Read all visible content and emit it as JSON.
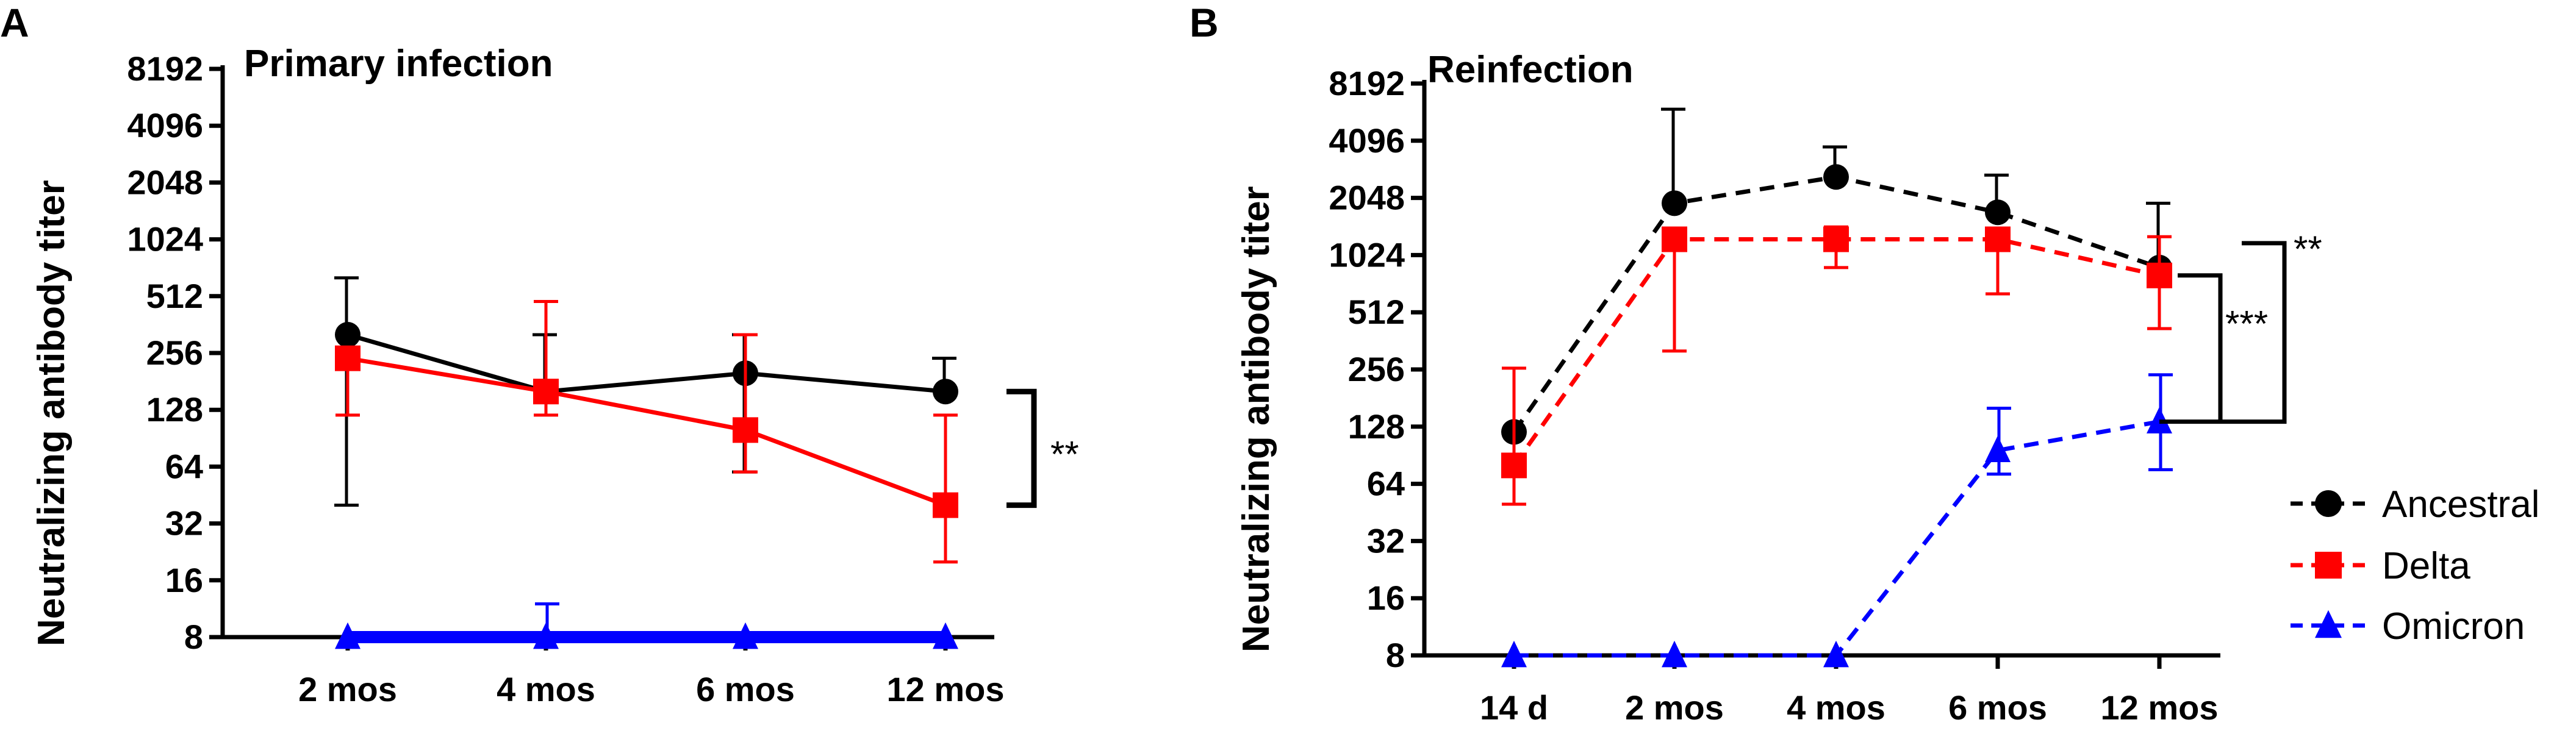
{
  "chart_data": [
    {
      "panel": "A",
      "type": "line",
      "title": "Primary infection",
      "ylabel": "Neutralizing antibody titer",
      "xlabel": "",
      "yscale": "log2",
      "ylim": [
        8,
        8192
      ],
      "yticks": [
        "8192",
        "4096",
        "2048",
        "1024",
        "512",
        "256",
        "128",
        "64",
        "32",
        "16",
        "8"
      ],
      "categories": [
        "2 mos",
        "4 mos",
        "6 mos",
        "12 mos"
      ],
      "series": [
        {
          "name": "Ancestral",
          "color": "#000000",
          "marker": "circle",
          "dash": "solid",
          "values": [
            320,
            160,
            200,
            160
          ],
          "err_low": [
            40,
            160,
            60,
            160
          ],
          "err_high": [
            640,
            320,
            320,
            240
          ]
        },
        {
          "name": "Delta",
          "color": "#ff0000",
          "marker": "square",
          "dash": "solid",
          "values": [
            240,
            160,
            100,
            40
          ],
          "err_low": [
            120,
            120,
            60,
            20
          ],
          "err_high": [
            240,
            480,
            320,
            120
          ]
        },
        {
          "name": "Omicron",
          "color": "#0000ff",
          "marker": "triangle",
          "dash": "solid",
          "values": [
            8,
            8,
            8,
            8
          ],
          "err_low": [
            8,
            8,
            8,
            8
          ],
          "err_high": [
            8,
            12,
            8,
            8
          ]
        }
      ],
      "significance": [
        {
          "label": "**",
          "between": [
            "Ancestral",
            "Delta"
          ],
          "at": "12 mos"
        }
      ]
    },
    {
      "panel": "B",
      "type": "line",
      "title": "Reinfection",
      "ylabel": "Neutralizing antibody titer",
      "xlabel": "",
      "yscale": "log2",
      "ylim": [
        8,
        8192
      ],
      "yticks": [
        "8192",
        "4096",
        "2048",
        "1024",
        "512",
        "256",
        "128",
        "64",
        "32",
        "16",
        "8"
      ],
      "categories": [
        "14 d",
        "2 mos",
        "4 mos",
        "6 mos",
        "12 mos"
      ],
      "series": [
        {
          "name": "Ancestral",
          "color": "#000000",
          "marker": "circle",
          "dash": "dashed",
          "values": [
            120,
            1920,
            2640,
            1720,
            880
          ],
          "err_low": [
            120,
            1920,
            2640,
            1720,
            880
          ],
          "err_high": [
            120,
            6000,
            3800,
            2700,
            1920
          ]
        },
        {
          "name": "Delta",
          "color": "#ff0000",
          "marker": "square",
          "dash": "dashed",
          "values": [
            80,
            1240,
            1240,
            1240,
            800
          ],
          "err_low": [
            50,
            320,
            880,
            640,
            420
          ],
          "err_high": [
            260,
            1240,
            1440,
            1240,
            1280
          ]
        },
        {
          "name": "Omicron",
          "color": "#0000ff",
          "marker": "triangle",
          "dash": "dashed",
          "values": [
            8,
            8,
            8,
            96,
            136
          ],
          "err_low": [
            8,
            8,
            8,
            72,
            76
          ],
          "err_high": [
            8,
            8,
            8,
            160,
            240
          ]
        }
      ],
      "significance": [
        {
          "label": "***",
          "between": [
            "Delta",
            "Omicron"
          ],
          "at": "12 mos"
        },
        {
          "label": "**",
          "between": [
            "Ancestral",
            "Omicron"
          ],
          "at": "12 mos"
        }
      ],
      "legend": {
        "placement": "right",
        "entries": [
          "Ancestral",
          "Delta",
          "Omicron"
        ]
      }
    }
  ]
}
